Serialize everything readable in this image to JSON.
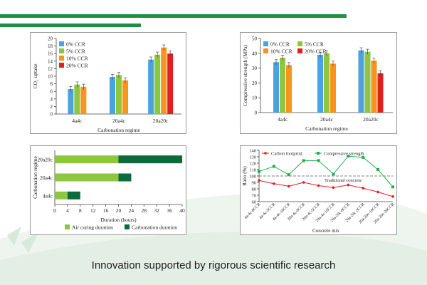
{
  "colors": {
    "accent_green": "#1f8f3f",
    "dark_green": "#0b6b3a",
    "light_green": "#8dc63f",
    "blue": "#4aa3df",
    "orange": "#f7941d",
    "red": "#e02020",
    "background_wave": "#e8f2ea"
  },
  "caption": "Innovation supported by rigorous scientific research",
  "chart_data": [
    {
      "type": "bar",
      "xlabel": "Carbonation regime",
      "ylabel": "CO₂ uptake",
      "ylim": [
        0,
        20
      ],
      "yticks": [
        0,
        2,
        4,
        6,
        8,
        10,
        12,
        14,
        16,
        18,
        20
      ],
      "categories": [
        "4a4c",
        "20a4c",
        "20a20c"
      ],
      "series": [
        {
          "name": "0% CCR",
          "color": "#4aa3df",
          "values": [
            6.6,
            9.8,
            14.4
          ]
        },
        {
          "name": "5% CCR",
          "color": "#8dc63f",
          "values": [
            7.8,
            10.3,
            15.7
          ]
        },
        {
          "name": "10% CCR",
          "color": "#f7941d",
          "values": [
            7.2,
            8.9,
            17.6
          ]
        },
        {
          "name": "20% CCR",
          "color": "#e02020",
          "values": [
            null,
            null,
            16.0
          ]
        }
      ],
      "legend": "top-left"
    },
    {
      "type": "bar",
      "xlabel": "Carbonation regime",
      "ylabel": "Compressive strength (MPa)",
      "ylim": [
        0,
        50
      ],
      "yticks": [
        0,
        10,
        20,
        30,
        40,
        50
      ],
      "categories": [
        "4a4c",
        "20a4c",
        "20a20c"
      ],
      "series": [
        {
          "name": "0% CCR",
          "color": "#4aa3df",
          "values": [
            34,
            39,
            42
          ]
        },
        {
          "name": "5% CCR",
          "color": "#8dc63f",
          "values": [
            37,
            40,
            41
          ]
        },
        {
          "name": "10% CCR",
          "color": "#f7941d",
          "values": [
            32,
            33,
            35
          ]
        },
        {
          "name": "20% CCR",
          "color": "#e02020",
          "values": [
            null,
            null,
            26.5
          ]
        }
      ],
      "legend": "top-left"
    },
    {
      "type": "bar",
      "orientation": "horizontal-stacked",
      "xlabel": "Duration (hours)",
      "ylabel": "Carbonation regime",
      "xlim": [
        0,
        40
      ],
      "xticks": [
        0,
        4,
        8,
        12,
        16,
        20,
        24,
        28,
        32,
        36,
        40
      ],
      "categories": [
        "4a4c",
        "20a4c",
        "20a20c"
      ],
      "series": [
        {
          "name": "Air curing duration",
          "color": "#8dc63f",
          "values": [
            4,
            20,
            20
          ]
        },
        {
          "name": "Carbonation duration",
          "color": "#0b6b3a",
          "values": [
            4,
            4,
            20
          ]
        }
      ],
      "legend": "bottom"
    },
    {
      "type": "line",
      "xlabel": "Concrete mix",
      "ylabel": "Ratio (%)",
      "ylim": [
        60,
        140
      ],
      "yticks": [
        60,
        70,
        80,
        90,
        100,
        110,
        120,
        130,
        140
      ],
      "categories": [
        "4a-4c-0CCR",
        "4a-4c-5CCR",
        "4a-4c-10CCR",
        "20a-4c-0CCR",
        "20a-4c-5CCR",
        "20a-4c-10CCR",
        "20a-20c-0CCR",
        "20a-20c-5CCR",
        "20a-20c-10CCR",
        "20a-20c-20CCR"
      ],
      "series": [
        {
          "name": "Carbon footprint",
          "color": "#e02020",
          "values": [
            93,
            88,
            84,
            90,
            85,
            82,
            86,
            81,
            75,
            68
          ]
        },
        {
          "name": "Compressive strength",
          "color": "#1fae4b",
          "values": [
            107,
            115,
            102,
            124,
            124,
            103,
            131,
            129,
            110,
            83
          ]
        }
      ],
      "reference_line": {
        "value": 100,
        "label": "Traditional concrete"
      },
      "legend": "top"
    }
  ]
}
